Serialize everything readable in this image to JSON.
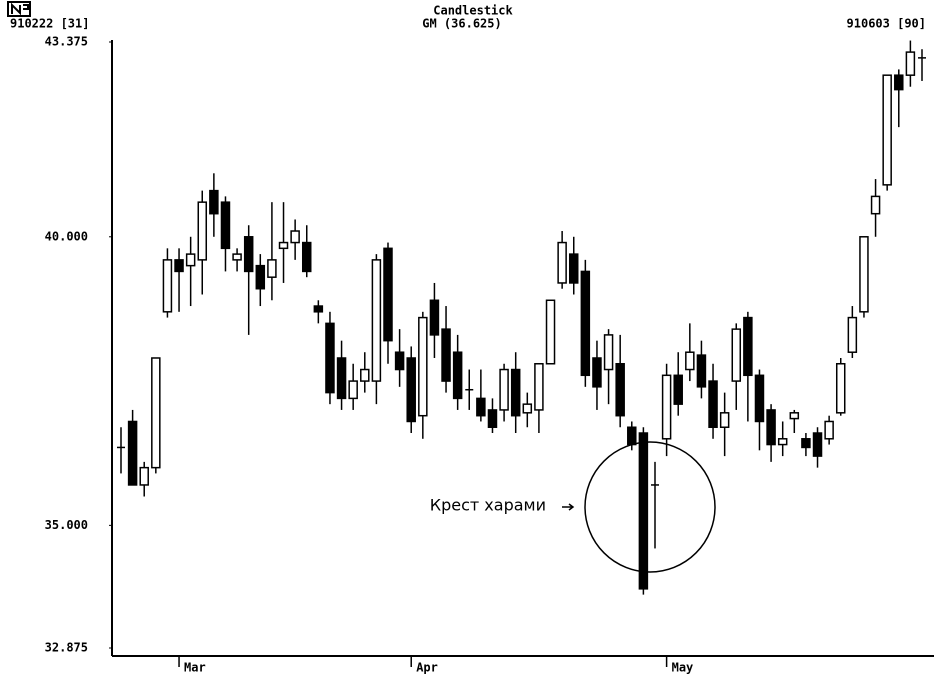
{
  "chart_data": {
    "type": "candlestick",
    "title": "Candlestick",
    "subtitle": "GM (36.625)",
    "start_label": "910222 [31]",
    "end_label": "910603 [90]",
    "annotation": "Крест харами",
    "up_color": "#ffffff",
    "down_color": "#000000",
    "ylim": [
      32.875,
      43.375
    ],
    "yticks": [
      {
        "value": 32.875,
        "label": "32.875"
      },
      {
        "value": 35,
        "label": "35.000"
      },
      {
        "value": 40,
        "label": "40.000"
      },
      {
        "value": 43.375,
        "label": "43.375"
      }
    ],
    "grid": false,
    "categories": [
      null,
      null,
      null,
      null,
      null,
      "Mar",
      null,
      null,
      null,
      null,
      null,
      null,
      null,
      null,
      null,
      null,
      null,
      null,
      null,
      null,
      null,
      null,
      null,
      null,
      null,
      "Apr",
      null,
      null,
      null,
      null,
      null,
      null,
      null,
      null,
      null,
      null,
      null,
      null,
      null,
      null,
      null,
      null,
      null,
      null,
      null,
      null,
      null,
      "May",
      null,
      null,
      null,
      null,
      null,
      null,
      null,
      null,
      null,
      null,
      null,
      null,
      null,
      null,
      null,
      null,
      null,
      null,
      null,
      null,
      null,
      null
    ],
    "open": [
      36.35,
      36.8,
      35.7,
      36.0,
      38.7,
      39.6,
      39.5,
      39.6,
      40.8,
      40.6,
      39.6,
      40.0,
      39.5,
      39.3,
      39.8,
      39.9,
      39.9,
      38.8,
      38.5,
      37.9,
      37.2,
      37.5,
      37.5,
      39.8,
      38.0,
      37.9,
      36.9,
      38.9,
      38.4,
      38.0,
      37.35,
      37.2,
      37.0,
      37.0,
      37.7,
      36.95,
      37.0,
      37.8,
      39.2,
      39.7,
      39.4,
      37.9,
      37.7,
      37.8,
      36.7,
      36.6,
      35.7,
      36.5,
      37.6,
      37.7,
      37.95,
      37.5,
      36.7,
      37.5,
      38.6,
      37.6,
      37.0,
      36.4,
      36.85,
      36.5,
      36.6,
      36.5,
      36.95,
      38.0,
      38.7,
      40.4,
      40.9,
      42.8,
      42.8,
      43.1
    ],
    "high": [
      36.7,
      37.0,
      36.1,
      37.9,
      39.8,
      39.8,
      40.0,
      40.8,
      41.1,
      40.7,
      39.8,
      40.2,
      39.7,
      40.6,
      40.6,
      40.3,
      40.2,
      38.9,
      38.7,
      38.2,
      37.8,
      38.0,
      39.7,
      39.9,
      38.4,
      38.1,
      38.7,
      39.2,
      38.8,
      38.3,
      37.7,
      37.7,
      37.2,
      37.8,
      38.0,
      37.3,
      37.8,
      38.9,
      40.1,
      40.0,
      39.6,
      38.2,
      38.4,
      38.3,
      36.8,
      36.7,
      36.1,
      37.8,
      38.0,
      38.5,
      38.2,
      37.8,
      37.3,
      38.5,
      38.7,
      37.7,
      37.1,
      36.8,
      37.0,
      36.6,
      36.7,
      36.9,
      37.9,
      38.8,
      40.0,
      41.0,
      42.8,
      42.9,
      43.4,
      43.25
    ],
    "low": [
      35.9,
      35.7,
      35.5,
      35.9,
      38.6,
      38.7,
      38.8,
      39.0,
      40.0,
      39.4,
      39.4,
      38.3,
      38.8,
      38.9,
      39.2,
      39.6,
      39.3,
      38.5,
      37.1,
      37.0,
      37.0,
      37.3,
      37.1,
      37.8,
      37.4,
      36.6,
      36.5,
      37.9,
      37.3,
      37.0,
      37.0,
      36.8,
      36.6,
      36.8,
      36.6,
      36.7,
      36.6,
      37.8,
      39.1,
      39.0,
      37.4,
      37.0,
      37.1,
      36.7,
      36.3,
      33.8,
      34.6,
      36.2,
      36.9,
      37.5,
      37.2,
      36.5,
      36.2,
      37.0,
      36.8,
      36.3,
      36.1,
      36.2,
      36.6,
      36.2,
      36.0,
      36.4,
      36.9,
      37.9,
      38.6,
      40.0,
      40.8,
      41.9,
      42.6,
      42.7
    ],
    "close": [
      36.35,
      35.7,
      36.0,
      37.9,
      39.6,
      39.4,
      39.7,
      40.6,
      40.4,
      39.8,
      39.7,
      39.4,
      39.1,
      39.6,
      39.9,
      40.1,
      39.4,
      38.7,
      37.3,
      37.2,
      37.5,
      37.7,
      39.6,
      38.2,
      37.7,
      36.8,
      38.6,
      38.3,
      37.5,
      37.2,
      37.35,
      36.9,
      36.7,
      37.7,
      36.9,
      37.1,
      37.8,
      38.9,
      39.9,
      39.2,
      37.6,
      37.4,
      38.3,
      36.9,
      36.4,
      33.9,
      35.7,
      37.6,
      37.1,
      38.0,
      37.4,
      36.7,
      36.95,
      38.4,
      37.6,
      36.8,
      36.4,
      36.5,
      36.95,
      36.35,
      36.2,
      36.8,
      37.8,
      38.6,
      40.0,
      40.7,
      42.8,
      42.55,
      43.2,
      43.1
    ]
  }
}
